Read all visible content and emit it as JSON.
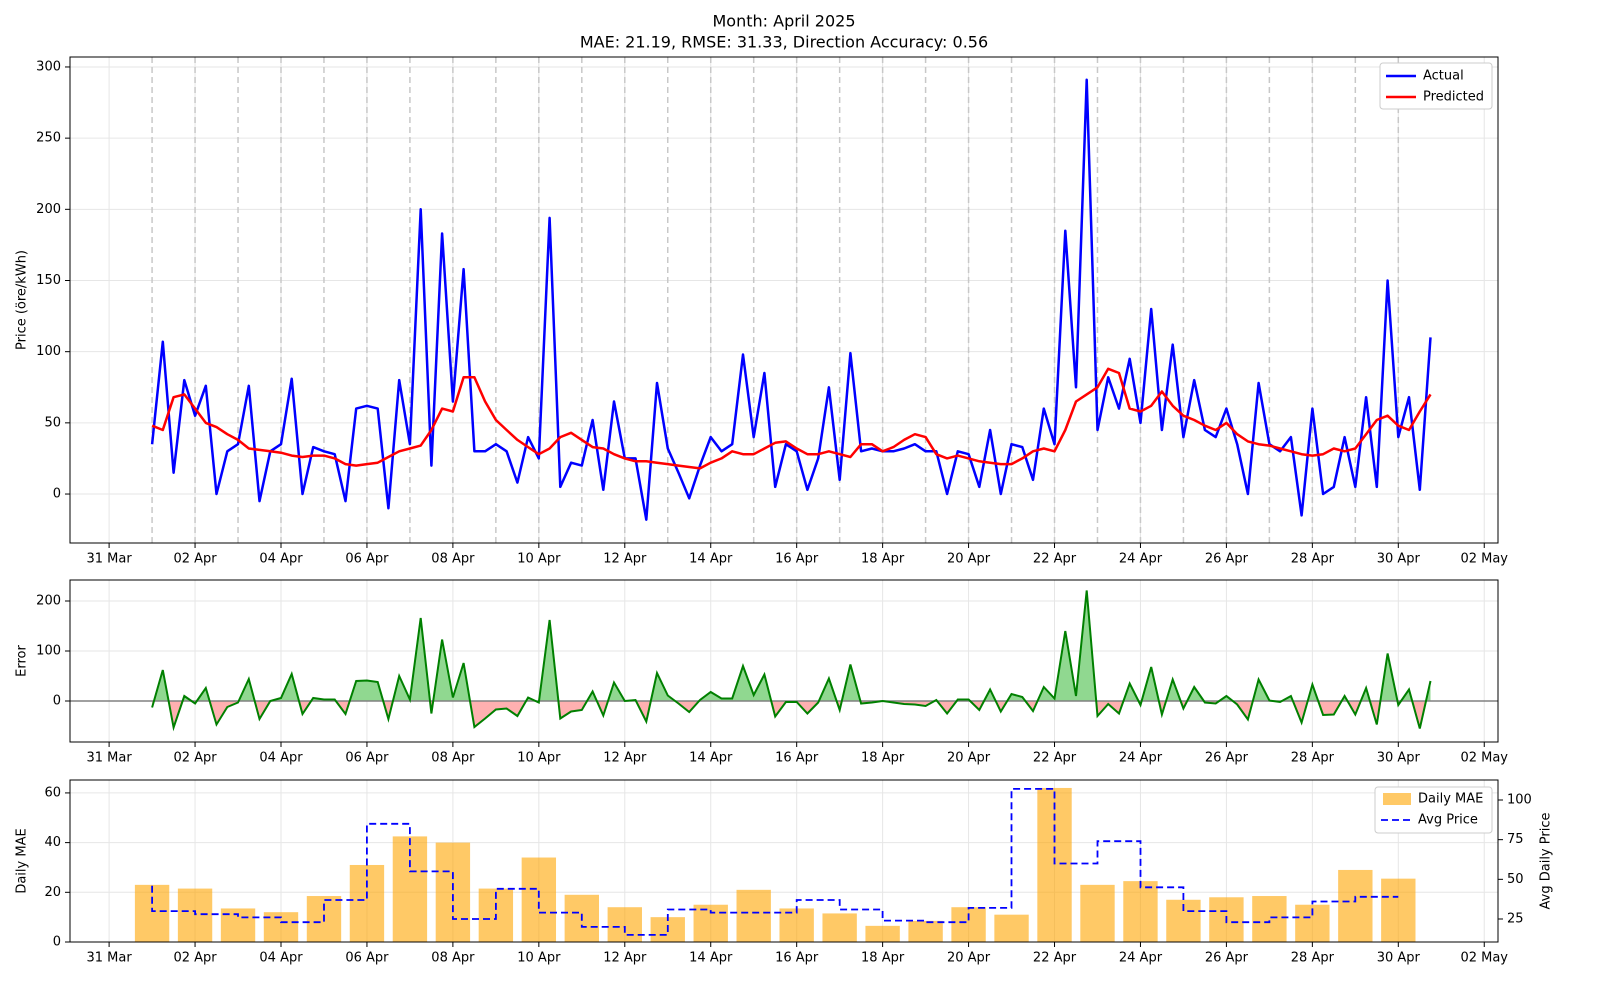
{
  "chart_data": [
    {
      "type": "line",
      "title": "Month: April 2025",
      "subtitle": "MAE: 21.19, RMSE: 31.33, Direction Accuracy: 0.56",
      "ylabel": "Price (öre/kWh)",
      "x": [
        1,
        1.25,
        1.5,
        1.75,
        2,
        2.25,
        2.5,
        2.75,
        3,
        3.25,
        3.5,
        3.75,
        4,
        4.25,
        4.5,
        4.75,
        5,
        5.25,
        5.5,
        5.75,
        6,
        6.25,
        6.5,
        6.75,
        7,
        7.25,
        7.5,
        7.75,
        8,
        8.25,
        8.5,
        8.75,
        9,
        9.25,
        9.5,
        9.75,
        10,
        10.25,
        10.5,
        10.75,
        11,
        11.25,
        11.5,
        11.75,
        12,
        12.25,
        12.5,
        12.75,
        13,
        13.25,
        13.5,
        13.75,
        14,
        14.25,
        14.5,
        14.75,
        15,
        15.25,
        15.5,
        15.75,
        16,
        16.25,
        16.5,
        16.75,
        17,
        17.25,
        17.5,
        17.75,
        18,
        18.25,
        18.5,
        18.75,
        19,
        19.25,
        19.5,
        19.75,
        20,
        20.25,
        20.5,
        20.75,
        21,
        21.25,
        21.5,
        21.75,
        22,
        22.25,
        22.5,
        22.75,
        23,
        23.25,
        23.5,
        23.75,
        24,
        24.25,
        24.5,
        24.75,
        25,
        25.25,
        25.5,
        25.75,
        26,
        26.25,
        26.5,
        26.75,
        27,
        27.25,
        27.5,
        27.75,
        28,
        28.25,
        28.5,
        28.75,
        29,
        29.25,
        29.5,
        29.75,
        30,
        30.25,
        30.5,
        30.75
      ],
      "series": [
        {
          "name": "Actual",
          "color": "#0000ff",
          "values": [
            35,
            107,
            15,
            80,
            55,
            76,
            0,
            30,
            35,
            76,
            -5,
            30,
            35,
            81,
            0,
            33,
            30,
            28,
            -5,
            60,
            62,
            60,
            -10,
            80,
            35,
            200,
            20,
            183,
            65,
            158,
            30,
            30,
            35,
            30,
            8,
            40,
            25,
            194,
            5,
            22,
            20,
            52,
            3,
            65,
            25,
            25,
            -18,
            78,
            32,
            15,
            -3,
            20,
            40,
            30,
            35,
            98,
            40,
            85,
            5,
            35,
            30,
            3,
            25,
            75,
            10,
            99,
            30,
            32,
            30,
            30,
            32,
            35,
            30,
            30,
            0,
            30,
            28,
            5,
            45,
            0,
            35,
            33,
            10,
            60,
            35,
            185,
            75,
            291,
            45,
            82,
            60,
            95,
            50,
            130,
            45,
            105,
            40,
            80,
            45,
            40,
            60,
            35,
            0,
            78,
            35,
            30,
            40,
            -15,
            60,
            0,
            5,
            40,
            5,
            68,
            5,
            150,
            40,
            68,
            3,
            110
          ]
        },
        {
          "name": "Predicted",
          "color": "#ff0000",
          "values": [
            48,
            45,
            68,
            70,
            60,
            50,
            47,
            42,
            38,
            32,
            31,
            30,
            29,
            27,
            26,
            27,
            27,
            25,
            21,
            20,
            21,
            22,
            26,
            30,
            32,
            34,
            45,
            60,
            58,
            82,
            82,
            65,
            52,
            45,
            38,
            33,
            28,
            32,
            40,
            43,
            38,
            33,
            32,
            28,
            25,
            23,
            23,
            22,
            21,
            20,
            19,
            18,
            22,
            25,
            30,
            28,
            28,
            32,
            36,
            37,
            32,
            28,
            28,
            30,
            28,
            26,
            35,
            35,
            30,
            33,
            38,
            42,
            40,
            28,
            25,
            27,
            25,
            23,
            22,
            21,
            21,
            25,
            30,
            32,
            30,
            45,
            65,
            70,
            75,
            88,
            85,
            60,
            58,
            62,
            72,
            62,
            55,
            52,
            48,
            45,
            50,
            42,
            37,
            35,
            34,
            32,
            30,
            28,
            27,
            28,
            32,
            30,
            32,
            42,
            52,
            55,
            48,
            45,
            58,
            70
          ]
        }
      ],
      "xlim": [
        -0.91,
        32.32
      ],
      "xticks": [
        {
          "value": 0,
          "label": "31 Mar"
        },
        {
          "value": 2,
          "label": "02 Apr"
        },
        {
          "value": 4,
          "label": "04 Apr"
        },
        {
          "value": 6,
          "label": "06 Apr"
        },
        {
          "value": 8,
          "label": "08 Apr"
        },
        {
          "value": 10,
          "label": "10 Apr"
        },
        {
          "value": 12,
          "label": "12 Apr"
        },
        {
          "value": 14,
          "label": "14 Apr"
        },
        {
          "value": 16,
          "label": "16 Apr"
        },
        {
          "value": 18,
          "label": "18 Apr"
        },
        {
          "value": 20,
          "label": "20 Apr"
        },
        {
          "value": 22,
          "label": "22 Apr"
        },
        {
          "value": 24,
          "label": "24 Apr"
        },
        {
          "value": 26,
          "label": "26 Apr"
        },
        {
          "value": 28,
          "label": "28 Apr"
        },
        {
          "value": 30,
          "label": "30 Apr"
        },
        {
          "value": 32,
          "label": "02 May"
        }
      ],
      "ylim": [
        -34.4,
        307
      ],
      "yticks": [
        0,
        50,
        100,
        150,
        200,
        250,
        300
      ],
      "day_lines": [
        1,
        2,
        3,
        4,
        5,
        6,
        7,
        8,
        9,
        10,
        11,
        12,
        13,
        14,
        15,
        16,
        17,
        18,
        19,
        20,
        21,
        22,
        23,
        24,
        25,
        26,
        27,
        28,
        29,
        30
      ],
      "grid": true,
      "legend": "upper right"
    },
    {
      "type": "area",
      "ylabel": "Error",
      "color": "#008000",
      "positive_fill": "#90d890",
      "negative_fill": "#ffb0b0",
      "x": [
        1,
        1.25,
        1.5,
        1.75,
        2,
        2.25,
        2.5,
        2.75,
        3,
        3.25,
        3.5,
        3.75,
        4,
        4.25,
        4.5,
        4.75,
        5,
        5.25,
        5.5,
        5.75,
        6,
        6.25,
        6.5,
        6.75,
        7,
        7.25,
        7.5,
        7.75,
        8,
        8.25,
        8.5,
        8.75,
        9,
        9.25,
        9.5,
        9.75,
        10,
        10.25,
        10.5,
        10.75,
        11,
        11.25,
        11.5,
        11.75,
        12,
        12.25,
        12.5,
        12.75,
        13,
        13.25,
        13.5,
        13.75,
        14,
        14.25,
        14.5,
        14.75,
        15,
        15.25,
        15.5,
        15.75,
        16,
        16.25,
        16.5,
        16.75,
        17,
        17.25,
        17.5,
        17.75,
        18,
        18.25,
        18.5,
        18.75,
        19,
        19.25,
        19.5,
        19.75,
        20,
        20.25,
        20.5,
        20.75,
        21,
        21.25,
        21.5,
        21.75,
        22,
        22.25,
        22.5,
        22.75,
        23,
        23.25,
        23.5,
        23.75,
        24,
        24.25,
        24.5,
        24.75,
        25,
        25.25,
        25.5,
        25.75,
        26,
        26.25,
        26.5,
        26.75,
        27,
        27.25,
        27.5,
        27.75,
        28,
        28.25,
        28.5,
        28.75,
        29,
        29.25,
        29.5,
        29.75,
        30,
        30.25,
        30.5,
        30.75
      ],
      "values": [
        -13,
        62,
        -53,
        10,
        -5,
        26,
        -47,
        -12,
        -3,
        44,
        -36,
        0,
        6,
        54,
        -26,
        6,
        3,
        3,
        -26,
        40,
        41,
        38,
        -36,
        50,
        3,
        166,
        -25,
        123,
        7,
        76,
        -52,
        -35,
        -17,
        -15,
        -30,
        7,
        -3,
        162,
        -35,
        -21,
        -18,
        19,
        -29,
        37,
        0,
        2,
        -41,
        56,
        11,
        -5,
        -22,
        2,
        18,
        5,
        5,
        70,
        12,
        53,
        -31,
        -2,
        -2,
        -25,
        -3,
        45,
        -18,
        73,
        -5,
        -3,
        0,
        -3,
        -6,
        -7,
        -10,
        2,
        -25,
        3,
        3,
        -18,
        23,
        -21,
        14,
        8,
        -20,
        28,
        5,
        140,
        10,
        221,
        -30,
        -6,
        -25,
        35,
        -8,
        68,
        -27,
        43,
        -15,
        28,
        -3,
        -5,
        10,
        -7,
        -37,
        43,
        1,
        -2,
        10,
        -43,
        33,
        -28,
        -27,
        10,
        -27,
        26,
        -47,
        95,
        -8,
        23,
        -55,
        40
      ],
      "xlim": [
        -0.91,
        32.32
      ],
      "xticks": [
        {
          "value": 0,
          "label": "31 Mar"
        },
        {
          "value": 2,
          "label": "02 Apr"
        },
        {
          "value": 4,
          "label": "04 Apr"
        },
        {
          "value": 6,
          "label": "06 Apr"
        },
        {
          "value": 8,
          "label": "08 Apr"
        },
        {
          "value": 10,
          "label": "10 Apr"
        },
        {
          "value": 12,
          "label": "12 Apr"
        },
        {
          "value": 14,
          "label": "14 Apr"
        },
        {
          "value": 16,
          "label": "16 Apr"
        },
        {
          "value": 18,
          "label": "18 Apr"
        },
        {
          "value": 20,
          "label": "20 Apr"
        },
        {
          "value": 22,
          "label": "22 Apr"
        },
        {
          "value": 24,
          "label": "24 Apr"
        },
        {
          "value": 26,
          "label": "26 Apr"
        },
        {
          "value": 28,
          "label": "28 Apr"
        },
        {
          "value": 30,
          "label": "30 Apr"
        },
        {
          "value": 32,
          "label": "02 May"
        }
      ],
      "ylim": [
        -82,
        242
      ],
      "yticks": [
        0,
        100,
        200
      ],
      "grid": true
    },
    {
      "type": "bar",
      "ylabel": "Daily MAE",
      "y2label": "Avg Daily Price",
      "x": [
        1,
        2,
        3,
        4,
        5,
        6,
        7,
        8,
        9,
        10,
        11,
        12,
        13,
        14,
        15,
        16,
        17,
        18,
        19,
        20,
        21,
        22,
        23,
        24,
        25,
        26,
        27,
        28,
        29,
        30
      ],
      "series": [
        {
          "name": "Daily MAE",
          "color": "#ffa500",
          "values": [
            23,
            21.5,
            13.5,
            12,
            18.5,
            31,
            42.5,
            40,
            21.5,
            34,
            19,
            14,
            10,
            15,
            21,
            13.5,
            11.5,
            6.5,
            8.5,
            14,
            11,
            62,
            23,
            24.5,
            17,
            18,
            18.5,
            15,
            29,
            25.5
          ]
        },
        {
          "name": "Avg Price",
          "color": "#0000ff",
          "axis": "y2",
          "values": [
            46,
            30,
            28,
            26,
            23,
            37,
            85,
            55,
            25,
            44,
            29,
            20,
            15,
            31,
            29,
            29,
            37,
            31,
            24,
            23,
            32,
            107,
            60,
            74,
            45,
            30,
            23,
            26,
            36,
            39
          ]
        }
      ],
      "xlim": [
        -0.91,
        32.32
      ],
      "xticks": [
        {
          "value": 0,
          "label": "31 Mar"
        },
        {
          "value": 2,
          "label": "02 Apr"
        },
        {
          "value": 4,
          "label": "04 Apr"
        },
        {
          "value": 6,
          "label": "06 Apr"
        },
        {
          "value": 8,
          "label": "08 Apr"
        },
        {
          "value": 10,
          "label": "10 Apr"
        },
        {
          "value": 12,
          "label": "12 Apr"
        },
        {
          "value": 14,
          "label": "14 Apr"
        },
        {
          "value": 16,
          "label": "16 Apr"
        },
        {
          "value": 18,
          "label": "18 Apr"
        },
        {
          "value": 20,
          "label": "20 Apr"
        },
        {
          "value": 22,
          "label": "22 Apr"
        },
        {
          "value": 24,
          "label": "24 Apr"
        },
        {
          "value": 26,
          "label": "26 Apr"
        },
        {
          "value": 28,
          "label": "28 Apr"
        },
        {
          "value": 30,
          "label": "30 Apr"
        },
        {
          "value": 32,
          "label": "02 May"
        }
      ],
      "ylim": [
        0,
        65.2
      ],
      "yticks": [
        0,
        20,
        40,
        60
      ],
      "y2lim": [
        10.5,
        112.6
      ],
      "y2ticks": [
        25,
        50,
        75,
        100
      ],
      "grid": true,
      "legend": "upper right"
    }
  ]
}
